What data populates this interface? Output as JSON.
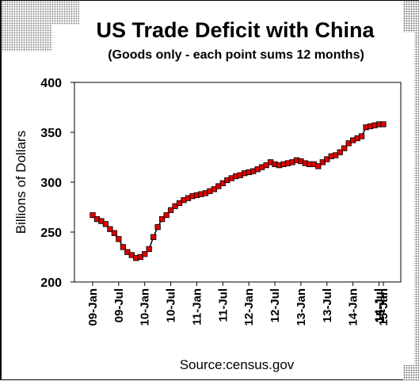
{
  "chart_data": {
    "type": "line",
    "title": "US Trade Deficit  with China",
    "subtitle": "(Goods only - each point sums 12 months)",
    "ylabel": "Billions of Dollars",
    "source": "Source:census.gov",
    "ylim": [
      200,
      400
    ],
    "yticks": [
      "400",
      "350",
      "300",
      "250",
      "200"
    ],
    "xticks": [
      "09-Jan",
      "09-Jul",
      "10-Jan",
      "10-Jul",
      "11-Jan",
      "11-Jul",
      "12-Jan",
      "12-Jul",
      "13-Jan",
      "13-Jul",
      "14-Jan",
      "14-Jul",
      "15-Jan",
      "15-Jul"
    ],
    "grid": false,
    "legend": "none",
    "marker": "square",
    "series_color": "#dd0000",
    "series": [
      {
        "values": [
          267,
          263,
          261,
          258,
          253,
          249,
          243,
          235,
          230,
          227,
          224,
          225,
          228,
          233,
          245,
          255,
          263,
          267,
          272,
          276,
          279,
          282,
          284,
          286,
          287,
          288,
          289,
          291,
          293,
          296,
          299,
          302,
          304,
          306,
          307,
          309,
          310,
          311,
          313,
          315,
          317,
          320,
          318,
          317,
          318,
          319,
          320,
          322,
          321,
          319,
          318,
          318,
          316,
          320,
          323,
          326,
          327,
          330,
          334,
          339,
          342,
          344,
          346,
          355,
          356,
          357,
          358,
          358
        ]
      }
    ]
  }
}
